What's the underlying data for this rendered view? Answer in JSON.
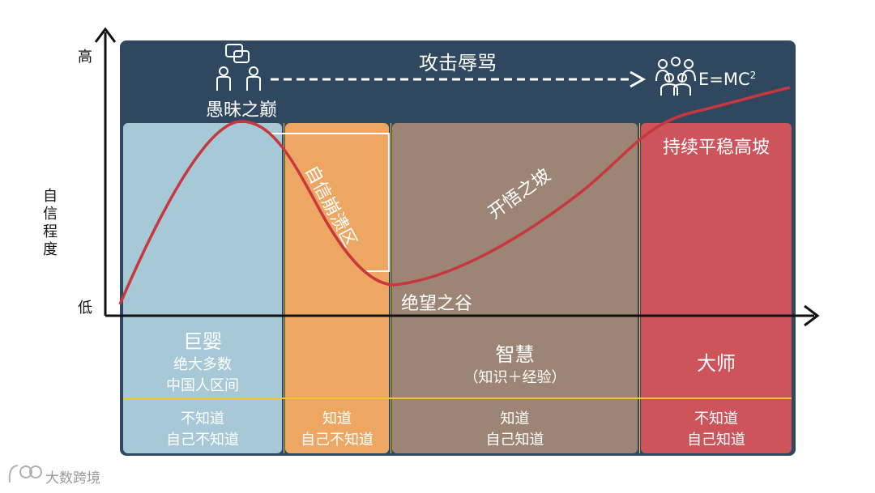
{
  "axes": {
    "y_label": "自信程度",
    "y_high": "高",
    "y_low": "低"
  },
  "header": {
    "top_label": "攻击辱骂",
    "peak_label": "愚昧之巅",
    "formula_prefix": "E=MC",
    "formula_exp": "2"
  },
  "stages": {
    "baby": {
      "title": "巨婴",
      "subtitle1": "绝大多数",
      "subtitle2": "中国人区间",
      "know1": "不知道",
      "know2": "自己不知道",
      "color": "#a7c8d6"
    },
    "collapse": {
      "curve_label": "自信崩溃区",
      "know1": "知道",
      "know2": "自己不知道",
      "color": "#eea762"
    },
    "wisdom": {
      "title": "智慧",
      "subtitle": "（知识＋经验）",
      "slope_label": "开悟之坡",
      "valley_label": "绝望之谷",
      "know1": "知道",
      "know2": "自己知道",
      "color": "#9c8574"
    },
    "master": {
      "title": "大师",
      "plateau_label": "持续平稳高坡",
      "know1": "不知道",
      "know2": "自己知道",
      "color": "#ce545c"
    }
  },
  "colors": {
    "panel": "#2f4860",
    "curve": "#c8373e",
    "divider": "#f2c233"
  },
  "icons": [
    "chat-people-icon",
    "arrow-right-icon",
    "group-icon",
    "watermark-logo-icon"
  ],
  "watermark": "大数跨境"
}
